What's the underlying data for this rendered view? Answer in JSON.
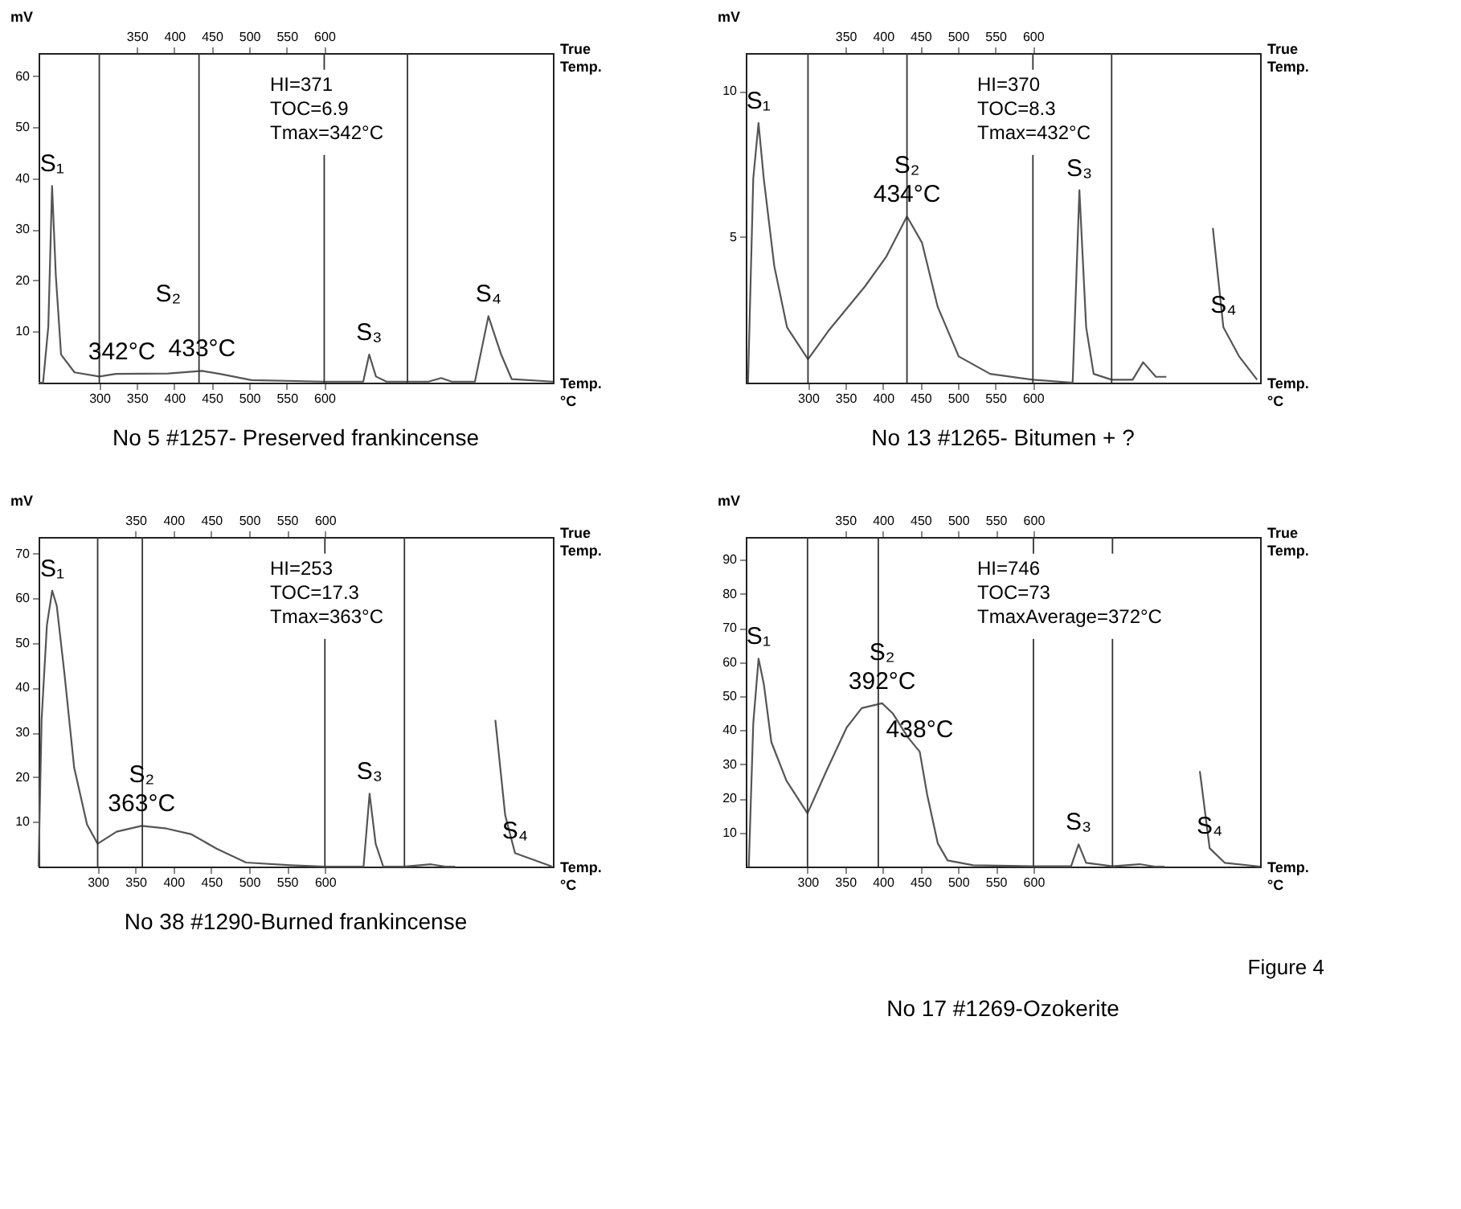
{
  "chart_data": [
    {
      "type": "line",
      "title": "No 5 #1257- Preserved frankincense",
      "ylabel": "mV",
      "xlabel": "Temp.\n°C",
      "x2label": "True\nTemp.",
      "color": "#555555",
      "x": [
        219,
        225,
        232,
        237,
        242,
        249,
        267,
        300,
        322,
        392,
        437,
        461,
        503,
        600,
        652,
        660,
        669,
        683,
        739,
        756,
        770,
        801,
        819,
        836,
        850,
        905
      ],
      "values": [
        0,
        0,
        11,
        38.5,
        21,
        5.5,
        2,
        1.2,
        1.7,
        1.8,
        2.3,
        1.7,
        0.5,
        0.2,
        0.2,
        5.5,
        1.2,
        0.2,
        0.2,
        0.9,
        0.2,
        0.2,
        13,
        5.5,
        0.7,
        0.2
      ],
      "xlim": [
        219,
        905
      ],
      "xticks": [
        300,
        350,
        400,
        450,
        500,
        550,
        600
      ],
      "x2lim": [
        219,
        905
      ],
      "x2ticks": [
        350,
        400,
        450,
        500,
        550,
        600
      ],
      "ylim": [
        0,
        64.5
      ],
      "yticks": [
        10,
        20,
        30,
        40,
        50,
        60
      ],
      "ref_lines": [
        {
          "axis": "x",
          "value": 300
        },
        {
          "axis": "x",
          "value": 433
        },
        {
          "axis": "x",
          "value": 600
        },
        {
          "axis": "x",
          "value": 711
        }
      ],
      "annotations": [
        "HI=371\nTOC=6.9\nTmax=342°C",
        {
          "text": "S₁",
          "x": 237,
          "y": 38.5
        },
        {
          "text": "342°C",
          "x": 330,
          "y": 1.7
        },
        {
          "text": "433°C",
          "x": 437,
          "y": 2.3
        },
        {
          "text": "S₂",
          "x": 392,
          "y": 1.8
        },
        {
          "text": "S₃",
          "x": 660,
          "y": 5.5
        },
        {
          "text": "S₄",
          "x": 819,
          "y": 13
        }
      ]
    },
    {
      "type": "line",
      "title": "No 13 #1265- Bitumen + ?",
      "ylabel": "mV",
      "xlabel": "Temp.\n°C",
      "x2label": "True\nTemp.",
      "color": "#555555",
      "x": [
        220,
        227,
        234,
        241,
        255,
        272,
        300,
        328,
        376,
        404,
        432,
        452,
        473,
        501,
        543,
        600,
        653,
        662,
        671,
        681,
        705,
        733,
        747,
        764,
        778,
        782,
        828,
        840,
        854,
        875,
        899
      ],
      "values": [
        0,
        7.0,
        8.9,
        7.0,
        4.0,
        1.9,
        0.8,
        1.8,
        3.3,
        4.3,
        5.7,
        4.8,
        2.6,
        0.9,
        0.3,
        0.1,
        0,
        6.6,
        1.9,
        0.3,
        0.1,
        0.1,
        0.7,
        0.2,
        0.2,
        null,
        null,
        5.3,
        1.9,
        0.9,
        0.1
      ],
      "xlim": [
        217,
        903
      ],
      "xticks": [
        300,
        350,
        400,
        450,
        500,
        550,
        600
      ],
      "x2lim": [
        217,
        903
      ],
      "x2ticks": [
        350,
        400,
        450,
        500,
        550,
        600
      ],
      "ylim": [
        0,
        11.3
      ],
      "yticks": [
        5,
        10
      ],
      "ref_lines": [
        {
          "axis": "x",
          "value": 300
        },
        {
          "axis": "x",
          "value": 432
        },
        {
          "axis": "x",
          "value": 600
        },
        {
          "axis": "x",
          "value": 705
        }
      ],
      "annotations": [
        "HI=370\nTOC=8.3\nTmax=432°C",
        {
          "text": "S₁",
          "x": 234,
          "y": 8.9
        },
        {
          "text": "434°C",
          "x": 432,
          "y": 5.7
        },
        {
          "text": "S₂",
          "x": 432,
          "y": 5.7
        },
        {
          "text": "S₃",
          "x": 662,
          "y": 6.6
        },
        {
          "text": "S₄",
          "x": 854,
          "y": 1.9
        }
      ]
    },
    {
      "type": "line",
      "title": "No 38 #1290-Burned frankincense",
      "ylabel": "mV",
      "xlabel": "Temp.\n°C",
      "x2label": "True\nTemp.",
      "color": "#555555",
      "x": [
        222,
        226,
        233,
        240,
        246,
        256,
        269,
        286,
        300,
        325,
        358,
        391,
        424,
        457,
        496,
        555,
        600,
        651,
        659,
        667,
        677,
        705,
        740,
        759,
        772,
        786,
        812,
        825,
        838,
        851,
        900
      ],
      "values": [
        0,
        32.8,
        54,
        61.7,
        58.3,
        43.4,
        22.1,
        9.4,
        5.1,
        7.8,
        9.1,
        8.5,
        7.2,
        4,
        0.9,
        0.3,
        0,
        0,
        16.3,
        5.1,
        0,
        0,
        0.5,
        0,
        0,
        null,
        null,
        32.8,
        11.5,
        3,
        0
      ],
      "xlim": [
        222,
        901
      ],
      "xticks": [
        300,
        350,
        400,
        450,
        500,
        550,
        600
      ],
      "x2lim": [
        222,
        901
      ],
      "x2ticks": [
        350,
        400,
        450,
        500,
        550,
        600
      ],
      "ylim": [
        0,
        73.7
      ],
      "yticks": [
        10,
        20,
        30,
        40,
        50,
        60,
        70
      ],
      "ref_lines": [
        {
          "axis": "x",
          "value": 300
        },
        {
          "axis": "x",
          "value": 359
        },
        {
          "axis": "x",
          "value": 600
        },
        {
          "axis": "x",
          "value": 705
        }
      ],
      "annotations": [
        "HI=253\nTOC=17.3\nTmax=363°C",
        {
          "text": "S₁",
          "x": 240,
          "y": 61.7
        },
        {
          "text": "363°C",
          "x": 358,
          "y": 9.1
        },
        {
          "text": "S₂",
          "x": 358,
          "y": 9.1
        },
        {
          "text": "S₃",
          "x": 659,
          "y": 16.3
        },
        {
          "text": "S₄",
          "x": 851,
          "y": 3
        }
      ]
    },
    {
      "type": "line",
      "title": "No 17 #1269-Ozokerite",
      "ylabel": "mV",
      "xlabel": "Temp.\n°C",
      "x2label": "True\nTemp.",
      "color": "#555555",
      "x": [
        222,
        228,
        235,
        242,
        252,
        272,
        300,
        325,
        352,
        372,
        399,
        413,
        433,
        449,
        459,
        473,
        486,
        520,
        600,
        650,
        660,
        670,
        705,
        741,
        761,
        774,
        794,
        804,
        821,
        834,
        854,
        901
      ],
      "values": [
        0,
        42.2,
        61,
        53.5,
        36.5,
        25.2,
        15.6,
        28,
        40.8,
        46.5,
        47.9,
        45,
        38,
        33.7,
        21,
        6.8,
        1.8,
        0.4,
        0.1,
        0.1,
        6.5,
        1.1,
        0.1,
        0.7,
        0,
        0,
        null,
        null,
        28,
        5.4,
        1.1,
        0
      ],
      "xlim": [
        218,
        901
      ],
      "xticks": [
        300,
        350,
        400,
        450,
        500,
        550,
        600
      ],
      "x2lim": [
        218,
        901
      ],
      "x2ticks": [
        350,
        400,
        450,
        500,
        550,
        600
      ],
      "ylim": [
        0,
        96.7
      ],
      "yticks": [
        10,
        20,
        30,
        40,
        50,
        60,
        70,
        80,
        90
      ],
      "ref_lines": [
        {
          "axis": "x",
          "value": 300
        },
        {
          "axis": "x",
          "value": 394
        },
        {
          "axis": "x",
          "value": 600
        },
        {
          "axis": "x",
          "value": 705
        }
      ],
      "annotations": [
        "HI=746\nTOC=73\nTmaxAverage=372°C",
        {
          "text": "S₁",
          "x": 235,
          "y": 61
        },
        {
          "text": "392°C",
          "x": 399,
          "y": 47.9
        },
        {
          "text": "S₂",
          "x": 399,
          "y": 47.9
        },
        {
          "text": "438°C",
          "x": 449,
          "y": 33.7
        },
        {
          "text": "S₃",
          "x": 660,
          "y": 6.5
        },
        {
          "text": "S₄",
          "x": 834,
          "y": 5.4
        },
        "Figure 4"
      ]
    }
  ]
}
